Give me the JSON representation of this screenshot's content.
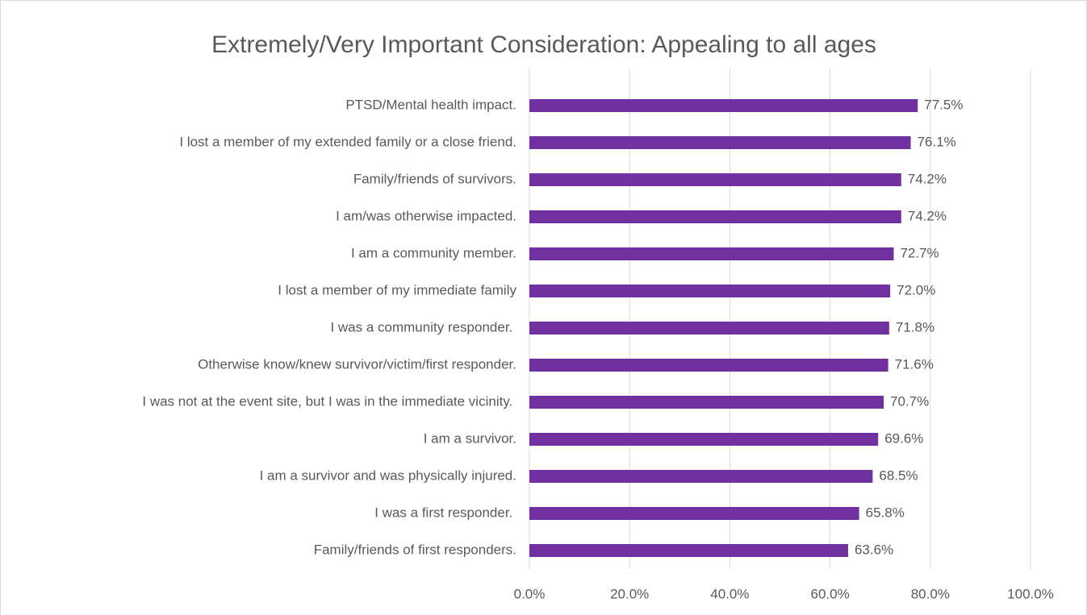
{
  "chart_data": {
    "type": "bar",
    "orientation": "horizontal",
    "title": "Extremely/Very Important Consideration: Appealing to all ages",
    "categories": [
      "PTSD/Mental health impact.",
      "I lost a member of my extended family or a close friend.",
      "Family/friends of survivors.",
      "I am/was otherwise impacted.",
      "I am a community member.",
      "I lost a member of my immediate family",
      "I was a community responder. ",
      "Otherwise know/knew survivor/victim/first responder.",
      "I was not at the event site, but I was in the immediate vicinity. ",
      "I am a survivor.",
      "I am a survivor and was physically injured.",
      "I was a first responder. ",
      "Family/friends of first responders."
    ],
    "values": [
      77.5,
      76.1,
      74.2,
      74.2,
      72.7,
      72.0,
      71.8,
      71.6,
      70.7,
      69.6,
      68.5,
      65.8,
      63.6
    ],
    "value_labels": [
      "77.5%",
      "76.1%",
      "74.2%",
      "74.2%",
      "72.7%",
      "72.0%",
      "71.8%",
      "71.6%",
      "70.7%",
      "69.6%",
      "68.5%",
      "65.8%",
      "63.6%"
    ],
    "color": "#7030a0",
    "xlim": [
      0,
      100
    ],
    "xticks": [
      {
        "value": 0,
        "label": "0.0%"
      },
      {
        "value": 20,
        "label": "20.0%"
      },
      {
        "value": 40,
        "label": "40.0%"
      },
      {
        "value": 60,
        "label": "60.0%"
      },
      {
        "value": 80,
        "label": "80.0%"
      },
      {
        "value": 100,
        "label": "100.0%"
      }
    ],
    "grid": true
  }
}
